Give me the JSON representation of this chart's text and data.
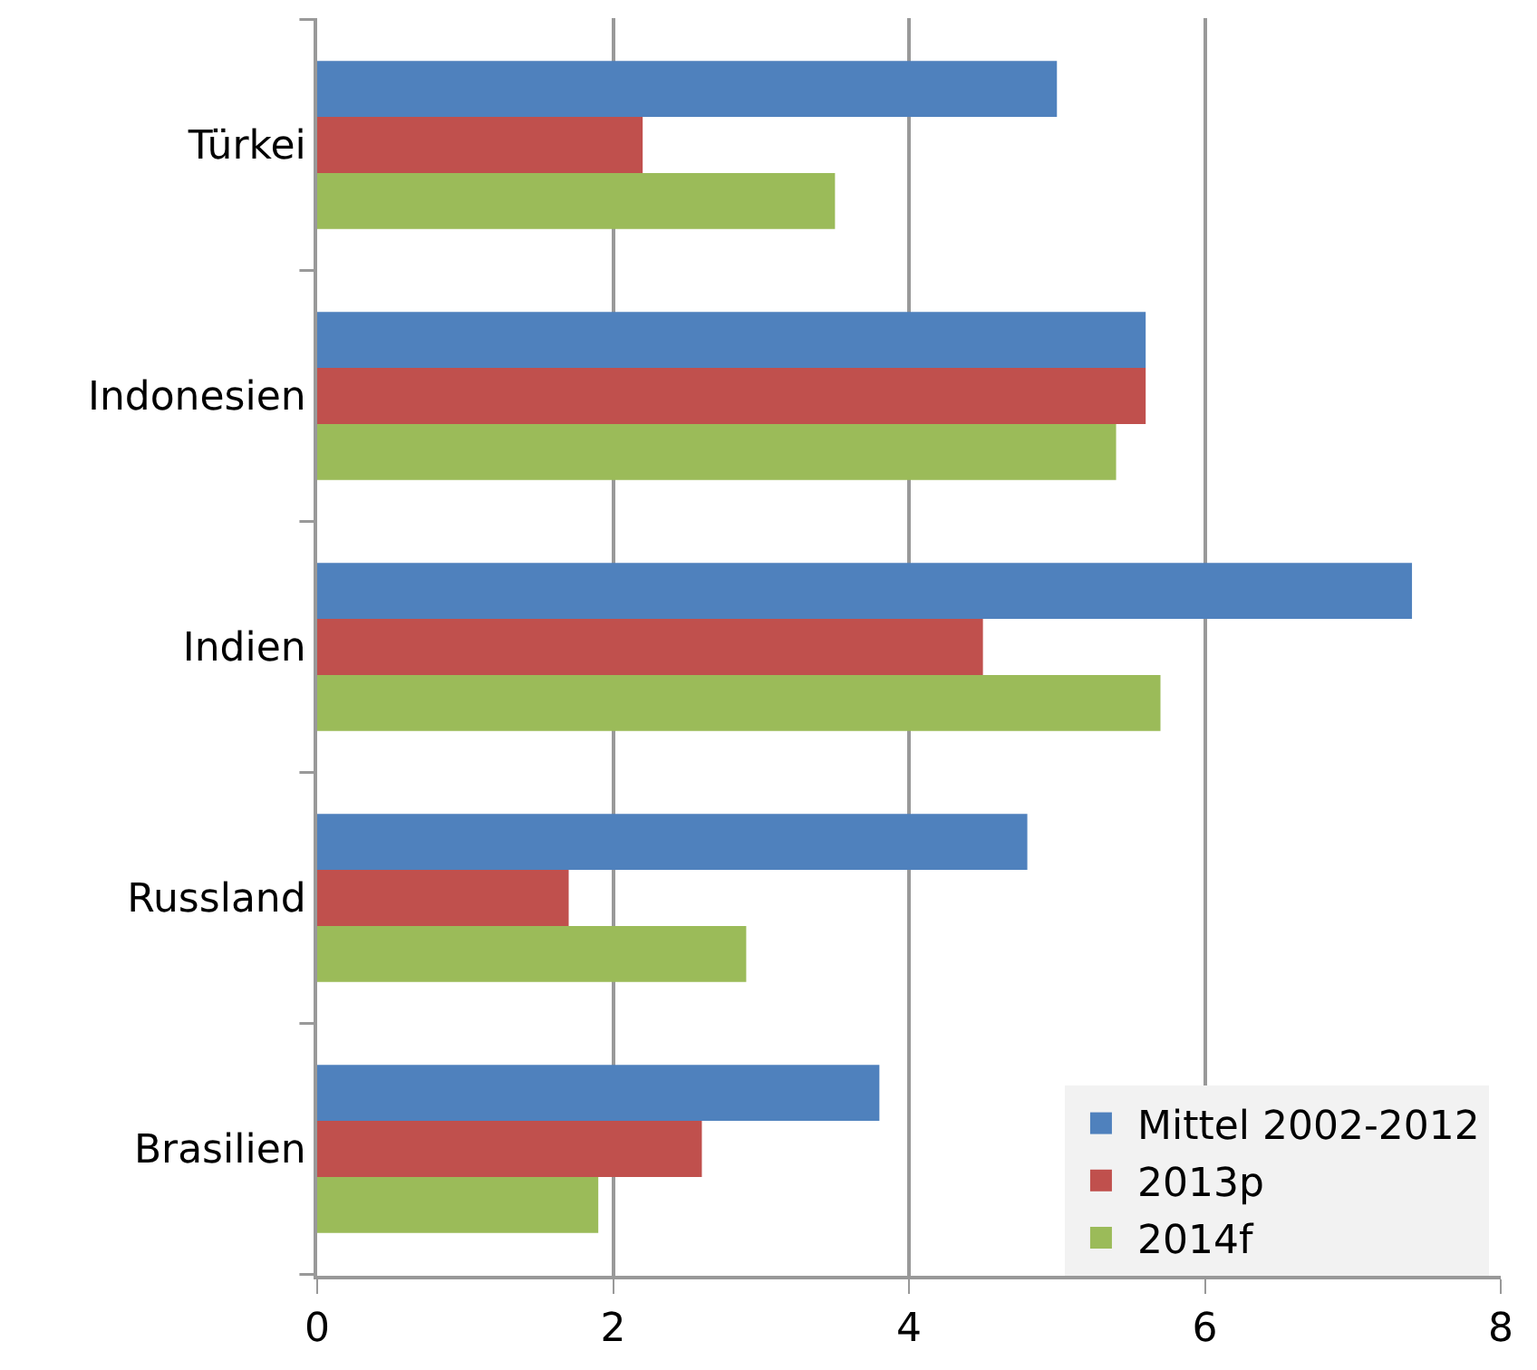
{
  "chart_data": {
    "type": "bar",
    "orientation": "horizontal",
    "categories": [
      "Türkei",
      "Indonesien",
      "Indien",
      "Russland",
      "Brasilien"
    ],
    "series": [
      {
        "name": "Mittel 2002-2012",
        "color": "#4f81bd",
        "values": [
          5.0,
          5.6,
          7.4,
          4.8,
          3.8
        ]
      },
      {
        "name": "2013p",
        "color": "#c0504d",
        "values": [
          2.2,
          5.6,
          4.5,
          1.7,
          2.6
        ]
      },
      {
        "name": "2014f",
        "color": "#9bbb59",
        "values": [
          3.5,
          5.4,
          5.7,
          2.9,
          1.9
        ]
      }
    ],
    "xlim": [
      0,
      8
    ],
    "xticks": [
      0,
      2,
      4,
      6,
      8
    ],
    "grid": "x",
    "legend": "bottom right"
  }
}
